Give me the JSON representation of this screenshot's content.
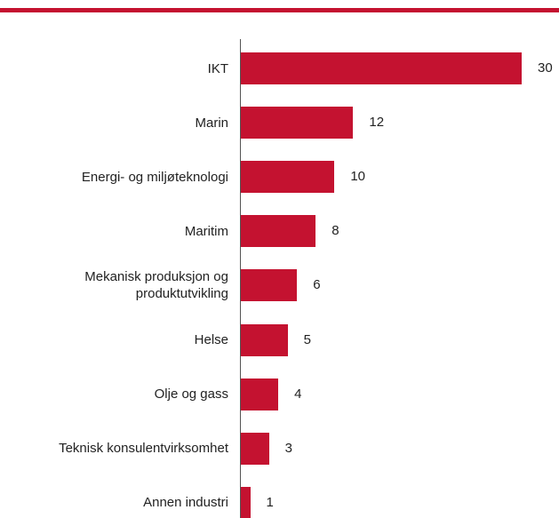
{
  "chart_data": {
    "type": "bar",
    "orientation": "horizontal",
    "categories": [
      "IKT",
      "Marin",
      "Energi- og miljøteknologi",
      "Maritim",
      "Mekanisk produksjon og produktutvikling",
      "Helse",
      "Olje og gass",
      "Teknisk konsulentvirksomhet",
      "Annen industri"
    ],
    "values": [
      30,
      12,
      10,
      8,
      6,
      5,
      4,
      3,
      1
    ],
    "color": "#c41230"
  }
}
